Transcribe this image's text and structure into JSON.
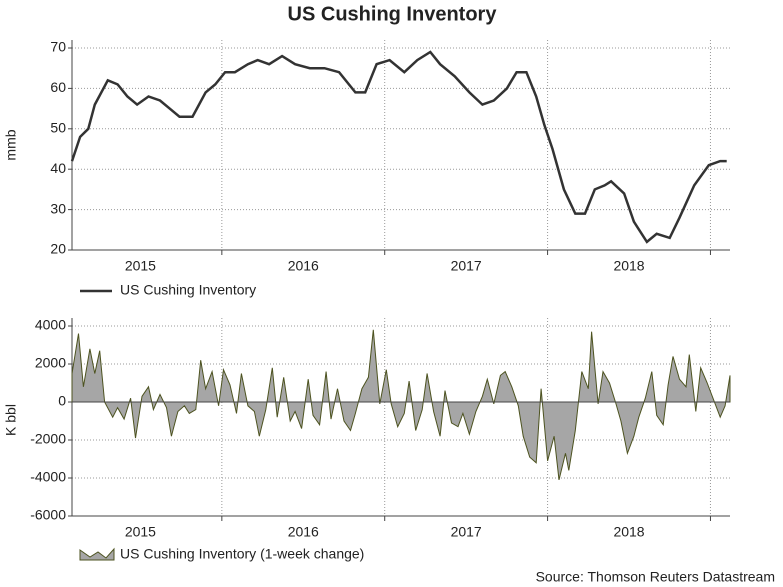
{
  "chart_data": [
    {
      "type": "line",
      "title": "US Cushing Inventory",
      "ylabel": "mmb",
      "x": [
        2015.08,
        2015.13,
        2015.18,
        2015.22,
        2015.3,
        2015.36,
        2015.42,
        2015.48,
        2015.55,
        2015.62,
        2015.68,
        2015.74,
        2015.82,
        2015.9,
        2015.96,
        2016.02,
        2016.08,
        2016.16,
        2016.22,
        2016.29,
        2016.37,
        2016.45,
        2016.54,
        2016.63,
        2016.72,
        2016.82,
        2016.88,
        2016.95,
        2017.03,
        2017.12,
        2017.2,
        2017.28,
        2017.34,
        2017.43,
        2017.52,
        2017.6,
        2017.67,
        2017.75,
        2017.81,
        2017.87,
        2017.93,
        2017.98,
        2018.03,
        2018.1,
        2018.17,
        2018.23,
        2018.29,
        2018.35,
        2018.39,
        2018.47,
        2018.53,
        2018.61,
        2018.67,
        2018.75,
        2018.81,
        2018.9,
        2018.99,
        2019.06,
        2019.1
      ],
      "series": [
        {
          "name": "US Cushing Inventory",
          "color": "#333333",
          "values": [
            42,
            48,
            50,
            56,
            62,
            61,
            58,
            56,
            58,
            57,
            55,
            53,
            53,
            59,
            61,
            64,
            64,
            66,
            67,
            66,
            68,
            66,
            65,
            65,
            64,
            59,
            59,
            66,
            67,
            64,
            67,
            69,
            66,
            63,
            59,
            56,
            57,
            60,
            64,
            64,
            58,
            51,
            45,
            35,
            29,
            29,
            35,
            36,
            37,
            34,
            27,
            22,
            24,
            23,
            28,
            36,
            41,
            42,
            42
          ]
        }
      ],
      "xlim": [
        2015.08,
        2019.12
      ],
      "xticks": [
        {
          "value": 2015.5,
          "label": "2015"
        },
        {
          "value": 2016.5,
          "label": "2016"
        },
        {
          "value": 2017.5,
          "label": "2017"
        },
        {
          "value": 2018.5,
          "label": "2018"
        }
      ],
      "xgrid": [
        2016,
        2017,
        2018,
        2019
      ],
      "ylim": [
        20,
        70
      ],
      "yticks": [
        20,
        30,
        40,
        50,
        60,
        70
      ],
      "grid": true
    },
    {
      "type": "area",
      "ylabel": "K bbl",
      "x": [
        2015.08,
        2015.12,
        2015.15,
        2015.19,
        2015.22,
        2015.25,
        2015.28,
        2015.33,
        2015.36,
        2015.4,
        2015.44,
        2015.47,
        2015.51,
        2015.55,
        2015.58,
        2015.62,
        2015.66,
        2015.69,
        2015.73,
        2015.77,
        2015.8,
        2015.84,
        2015.87,
        2015.9,
        2015.94,
        2015.98,
        2016.01,
        2016.05,
        2016.09,
        2016.12,
        2016.16,
        2016.2,
        2016.23,
        2016.27,
        2016.31,
        2016.34,
        2016.38,
        2016.42,
        2016.45,
        2016.49,
        2016.53,
        2016.56,
        2016.6,
        2016.64,
        2016.67,
        2016.71,
        2016.75,
        2016.79,
        2016.82,
        2016.86,
        2016.9,
        2016.93,
        2016.97,
        2017.01,
        2017.04,
        2017.08,
        2017.12,
        2017.15,
        2017.19,
        2017.23,
        2017.26,
        2017.3,
        2017.34,
        2017.37,
        2017.41,
        2017.45,
        2017.48,
        2017.52,
        2017.56,
        2017.6,
        2017.63,
        2017.67,
        2017.71,
        2017.74,
        2017.78,
        2017.82,
        2017.85,
        2017.89,
        2017.93,
        2017.96,
        2018.0,
        2018.04,
        2018.07,
        2018.11,
        2018.13,
        2018.17,
        2018.21,
        2018.25,
        2018.27,
        2018.31,
        2018.34,
        2018.38,
        2018.42,
        2018.45,
        2018.49,
        2018.53,
        2018.56,
        2018.6,
        2018.64,
        2018.67,
        2018.71,
        2018.74,
        2018.77,
        2018.81,
        2018.85,
        2018.87,
        2018.91,
        2018.94,
        2018.98,
        2019.02,
        2019.06,
        2019.09,
        2019.12
      ],
      "series": [
        {
          "name": "US Cushing Inventory (1-week change)",
          "color": "#a6a6a6",
          "values": [
            1500,
            3600,
            800,
            2800,
            1500,
            2700,
            0,
            -800,
            -300,
            -900,
            200,
            -1900,
            300,
            800,
            -400,
            400,
            -300,
            -1800,
            -500,
            -200,
            -600,
            -400,
            2200,
            700,
            1600,
            -200,
            1700,
            900,
            -600,
            1500,
            -200,
            -500,
            -1800,
            -400,
            1800,
            -800,
            1300,
            -1000,
            -500,
            -1400,
            1200,
            -700,
            -1200,
            1600,
            -900,
            700,
            -1000,
            -1500,
            -600,
            700,
            1300,
            3800,
            -100,
            1700,
            -100,
            -1300,
            -600,
            1100,
            -1500,
            -400,
            1500,
            -500,
            -1800,
            600,
            -1100,
            -1300,
            -600,
            -1700,
            -500,
            300,
            1200,
            -100,
            1400,
            1600,
            800,
            -200,
            -1800,
            -2900,
            -3200,
            700,
            -3100,
            -1800,
            -4100,
            -2700,
            -3600,
            -1500,
            1600,
            700,
            3700,
            -100,
            1600,
            1000,
            -100,
            -1000,
            -2700,
            -1800,
            -800,
            200,
            1600,
            -700,
            -1200,
            900,
            2400,
            1200,
            800,
            2500,
            -500,
            1800,
            1000,
            100,
            -800,
            -200,
            1400
          ]
        }
      ],
      "xlim": [
        2015.08,
        2019.12
      ],
      "xticks": [
        {
          "value": 2015.5,
          "label": "2015"
        },
        {
          "value": 2016.5,
          "label": "2016"
        },
        {
          "value": 2017.5,
          "label": "2017"
        },
        {
          "value": 2018.5,
          "label": "2018"
        }
      ],
      "xgrid": [
        2016,
        2017,
        2018,
        2019
      ],
      "ylim": [
        -6000,
        4000
      ],
      "yticks": [
        -6000,
        -4000,
        -2000,
        0,
        2000,
        4000
      ],
      "grid": true
    }
  ],
  "source": "Source: Thomson Reuters Datastream"
}
